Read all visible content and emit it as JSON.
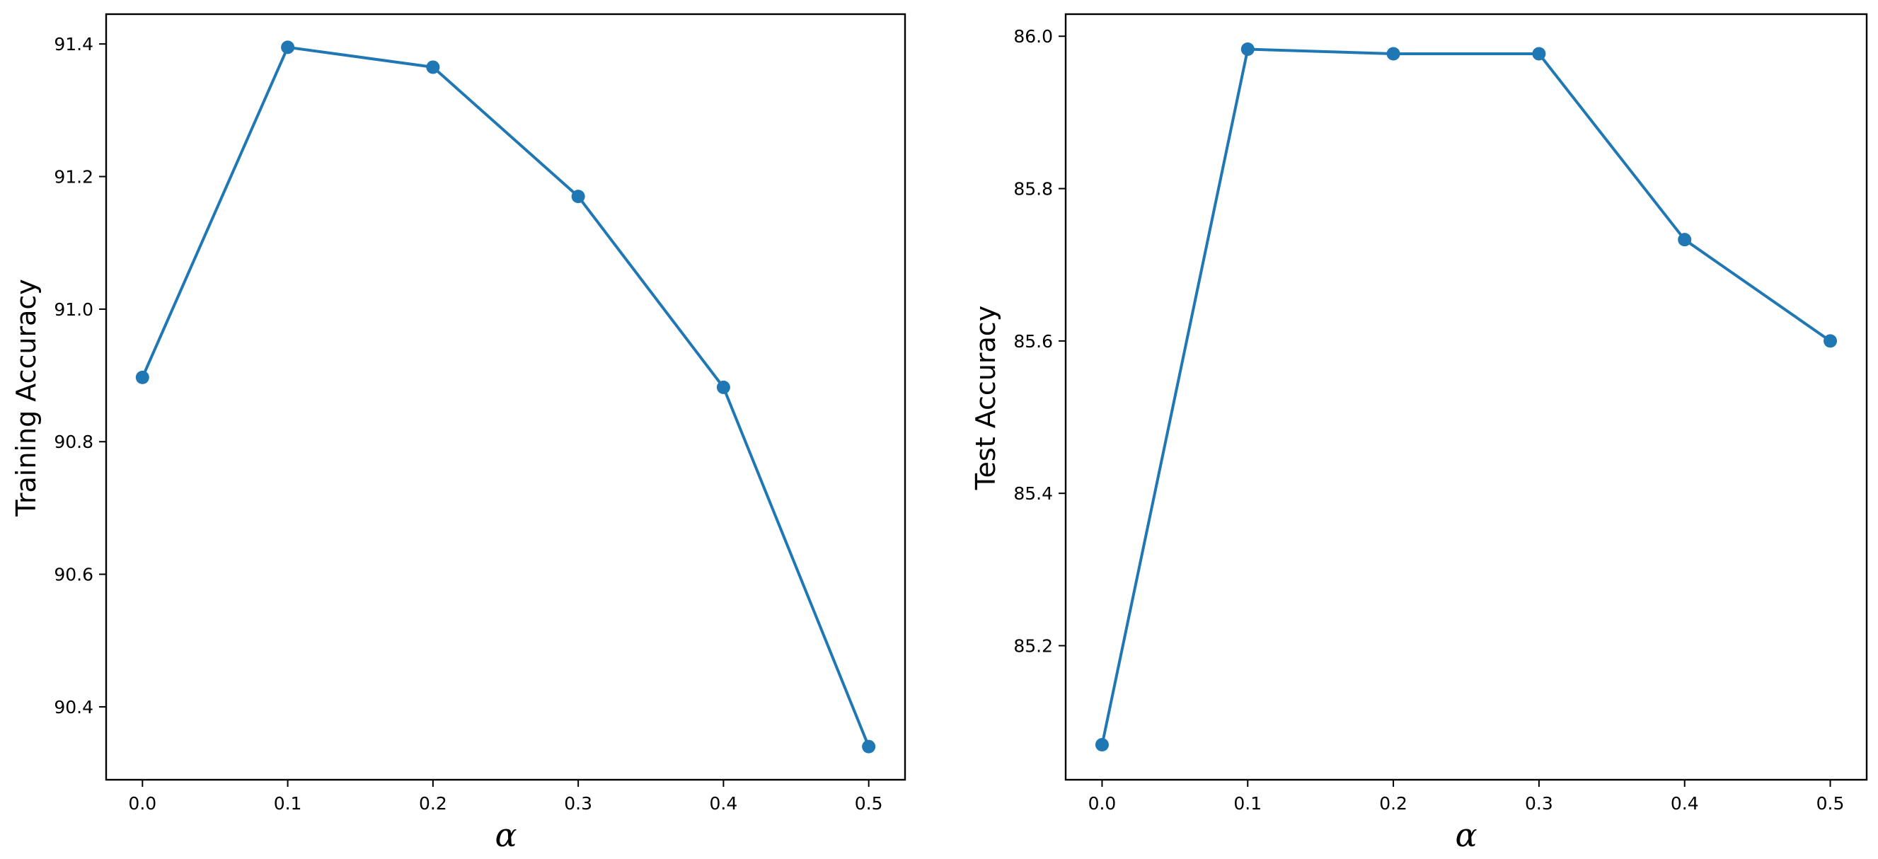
{
  "chart_data": [
    {
      "type": "line",
      "title": "",
      "xlabel": "α",
      "ylabel": "Training  Accuracy",
      "x": [
        0.0,
        0.1,
        0.2,
        0.3,
        0.4,
        0.5
      ],
      "series": [
        {
          "values": [
            90.897,
            91.395,
            91.365,
            91.17,
            90.882,
            90.34
          ],
          "color": "#1f77b4"
        }
      ],
      "xticks": [
        "0.0",
        "0.1",
        "0.2",
        "0.3",
        "0.4",
        "0.5"
      ],
      "yticks": [
        "90.4",
        "90.6",
        "90.8",
        "91.0",
        "91.2",
        "91.4"
      ],
      "xlim": [
        -0.025,
        0.525
      ],
      "ylim": [
        90.29,
        91.445
      ],
      "grid": false,
      "legend": "none"
    },
    {
      "type": "line",
      "title": "",
      "xlabel": "α",
      "ylabel": "Test  Accuracy",
      "x": [
        0.0,
        0.1,
        0.2,
        0.3,
        0.4,
        0.5
      ],
      "series": [
        {
          "values": [
            85.07,
            85.983,
            85.977,
            85.977,
            85.733,
            85.6
          ],
          "color": "#1f77b4"
        }
      ],
      "xticks": [
        "0.0",
        "0.1",
        "0.2",
        "0.3",
        "0.4",
        "0.5"
      ],
      "yticks": [
        "85.2",
        "85.4",
        "85.6",
        "85.8",
        "86.0"
      ],
      "xlim": [
        -0.025,
        0.525
      ],
      "ylim": [
        85.024,
        86.029
      ],
      "grid": false,
      "legend": "none"
    }
  ]
}
